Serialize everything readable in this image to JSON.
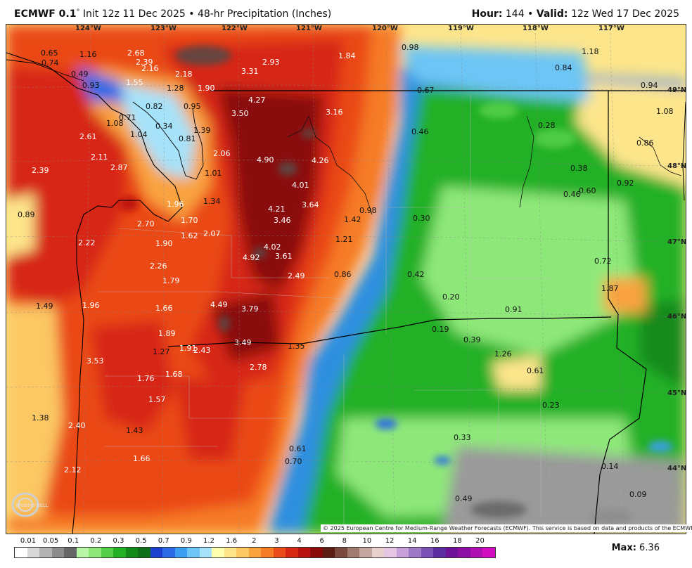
{
  "header": {
    "model": "ECMWF 0.1",
    "degree": "°",
    "init": " Init 12z 11 Dec 2025 • 48-hr Precipitation (Inches)",
    "hour_label": "Hour:",
    "hour_value": " 144 • ",
    "valid_label": "Valid:",
    "valid_value": " 12z Wed 17 Dec 2025"
  },
  "map": {
    "longitude_labels": [
      "124°W",
      "123°W",
      "122°W",
      "121°W",
      "120°W",
      "119°W",
      "118°W",
      "117°W"
    ],
    "latitude_labels": [
      "49°N",
      "48°N",
      "47°N",
      "46°N",
      "45°N",
      "44°N"
    ],
    "values": [
      "0.65",
      "1.16",
      "2.68",
      "0.74",
      "2.39",
      "2.16",
      "1.84",
      "0.98",
      "1.18",
      "0.49",
      "2.93",
      "3.31",
      "0.84",
      "0.93",
      "1.55",
      "2.18",
      "1.28",
      "1.90",
      "0.67",
      "0.94",
      "4.27",
      "0.82",
      "0.95",
      "3.16",
      "1.08",
      "3.50",
      "1.08",
      "0.71",
      "0.34",
      "1.04",
      "2.61",
      "1.39",
      "0.46",
      "0.28",
      "0.86",
      "0.81",
      "2.06",
      "4.90",
      "4.26",
      "2.11",
      "2.87",
      "2.39",
      "1.01",
      "0.38",
      "0.92",
      "4.01",
      "0.46",
      "0.60",
      "1.34",
      "3.64",
      "4.21",
      "1.96",
      "0.98",
      "0.89",
      "3.46",
      "1.42",
      "0.30",
      "1.70",
      "2.70",
      "1.62",
      "2.07",
      "1.90",
      "2.22",
      "1.21",
      "4.02",
      "4.92",
      "3.61",
      "0.72",
      "2.26",
      "2.49",
      "0.86",
      "0.42",
      "1.79",
      "1.87",
      "0.20",
      "1.49",
      "1.96",
      "1.66",
      "4.49",
      "3.79",
      "0.91",
      "0.19",
      "1.89",
      "0.39",
      "3.49",
      "1.35",
      "1.91",
      "2.43",
      "1.27",
      "1.26",
      "3.53",
      "2.78",
      "0.61",
      "1.76",
      "1.68",
      "1.57",
      "0.23",
      "1.38",
      "2.40",
      "1.43",
      "0.33",
      "0.61",
      "1.66",
      "0.70",
      "2.12",
      "0.14",
      "0.49",
      "0.09"
    ],
    "copyright": "© 2025 European Centre for Medium-Range Weather Forecasts (ECMWF). This service is based on data and products of the ECMWF.",
    "logo_text": "WeatherBELL"
  },
  "legend": {
    "ticks": [
      "0.01",
      "0.05",
      "0.1",
      "0.2",
      "0.3",
      "0.5",
      "0.7",
      "0.9",
      "1.2",
      "1.6",
      "2",
      "3",
      "4",
      "6",
      "8",
      "10",
      "12",
      "14",
      "16",
      "18",
      "20"
    ],
    "colors": [
      "#ffffff",
      "#d9d9d9",
      "#b3b3b3",
      "#8c8c8c",
      "#666666",
      "#b9f5a6",
      "#8ee879",
      "#55cf49",
      "#21b026",
      "#128a1a",
      "#0d6f1a",
      "#1d3fcf",
      "#2c6ae6",
      "#3c9ff2",
      "#6cc5f5",
      "#a6e2f9",
      "#ffffb0",
      "#fde58b",
      "#fcc864",
      "#f9a33f",
      "#f67b25",
      "#ea4a17",
      "#d72714",
      "#b80f10",
      "#8a0a0a",
      "#5c1d14",
      "#7a4a3f",
      "#a17a70",
      "#c6a6a0",
      "#e8d1cc",
      "#e4c6e2",
      "#c6a0d6",
      "#9e7ac6",
      "#7a52b6",
      "#5a2e9f",
      "#6e1297",
      "#8c0fa3",
      "#ad0fb1",
      "#d10fc0"
    ],
    "max_label": "Max:",
    "max_value": " 6.36"
  }
}
